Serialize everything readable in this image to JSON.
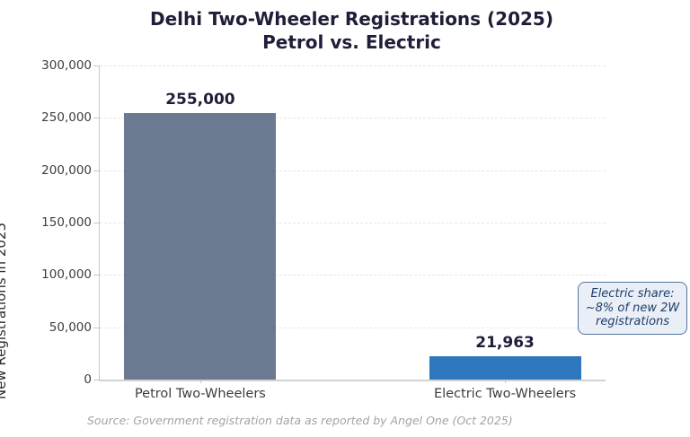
{
  "chart_data": {
    "type": "bar",
    "title": "Delhi Two-Wheeler Registrations (2025)",
    "subtitle": "Petrol vs. Electric",
    "categories": [
      "Petrol Two-Wheelers",
      "Electric Two-Wheelers"
    ],
    "values": [
      255000,
      21963
    ],
    "value_labels": [
      "255,000",
      "21,963"
    ],
    "bar_colors": [
      "#6b7a91",
      "#2e77bd"
    ],
    "xlabel": "",
    "ylabel": "New Registrations in 2025",
    "ylim": [
      0,
      300000
    ],
    "yticks": [
      0,
      50000,
      100000,
      150000,
      200000,
      250000,
      300000
    ],
    "ytick_labels": [
      "0",
      "50,000",
      "100,000",
      "150,000",
      "200,000",
      "250,000",
      "300,000"
    ],
    "grid": "horizontal-dashed",
    "legend": "none"
  },
  "annotation": {
    "lines": [
      "Electric share:",
      "~8% of new 2W",
      "registrations"
    ],
    "background": "#e9eef7",
    "border_color": "#54749d",
    "text_color": "#1e3f69"
  },
  "source_note": "Source: Government registration data as reported by Angel One (Oct 2025)",
  "colors": {
    "title": "#1e1e38",
    "value_label": "#1e1e38",
    "tick_label": "#3d3d3d",
    "gridline": "#e6e6e6",
    "spine": "#c7c7c7",
    "background": "#ffffff"
  }
}
